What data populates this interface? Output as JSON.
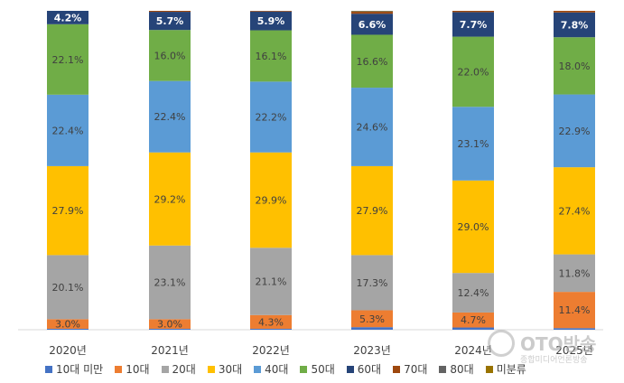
{
  "chart_data": {
    "type": "bar",
    "stacked": true,
    "categories": [
      "2020년",
      "2021년",
      "2022년",
      "2023년",
      "2024년",
      "2025년"
    ],
    "series": [
      {
        "name": "10대 미만",
        "color": "#4472c4",
        "values": [
          0.3,
          0.3,
          0.3,
          0.8,
          0.7,
          0.5
        ]
      },
      {
        "name": "10대",
        "color": "#ed7d31",
        "values": [
          3.0,
          3.0,
          4.3,
          5.3,
          4.7,
          11.4
        ]
      },
      {
        "name": "20대",
        "color": "#a5a5a5",
        "values": [
          20.1,
          23.1,
          21.1,
          17.3,
          12.4,
          11.8
        ]
      },
      {
        "name": "30대",
        "color": "#ffc000",
        "values": [
          27.9,
          29.2,
          29.9,
          27.9,
          29.0,
          27.4
        ]
      },
      {
        "name": "40대",
        "color": "#5b9bd5",
        "values": [
          22.4,
          22.4,
          22.2,
          24.6,
          23.1,
          22.9
        ]
      },
      {
        "name": "50대",
        "color": "#70ad47",
        "values": [
          22.1,
          16.0,
          16.1,
          16.6,
          22.0,
          18.0
        ]
      },
      {
        "name": "60대",
        "color": "#264478",
        "values": [
          4.2,
          5.7,
          5.9,
          6.6,
          7.7,
          7.8
        ]
      },
      {
        "name": "70대",
        "color": "#9e480e",
        "values": [
          0.0,
          0.3,
          0.2,
          0.6,
          0.4,
          0.5
        ]
      },
      {
        "name": "80대",
        "color": "#636363",
        "values": [
          0.0,
          0.0,
          0.0,
          0.2,
          0.0,
          0.0
        ]
      },
      {
        "name": "미분류",
        "color": "#997300",
        "values": [
          0.0,
          0.0,
          0.0,
          0.1,
          0.0,
          0.0
        ]
      }
    ],
    "data_labels": [
      [
        "",
        "3.0%",
        "20.1%",
        "27.9%",
        "22.4%",
        "22.1%",
        "4.2%",
        "",
        "",
        ""
      ],
      [
        "",
        "3.0%",
        "23.1%",
        "29.2%",
        "22.4%",
        "16.0%",
        "5.7%",
        "",
        "",
        ""
      ],
      [
        "",
        "4.3%",
        "21.1%",
        "29.9%",
        "22.2%",
        "16.1%",
        "5.9%",
        "",
        "",
        ""
      ],
      [
        "",
        "5.3%",
        "17.3%",
        "27.9%",
        "24.6%",
        "16.6%",
        "6.6%",
        "",
        "",
        ""
      ],
      [
        "",
        "4.7%",
        "12.4%",
        "29.0%",
        "23.1%",
        "22.0%",
        "7.7%",
        "",
        "",
        ""
      ],
      [
        "",
        "11.4%",
        "11.8%",
        "27.4%",
        "22.9%",
        "18.0%",
        "7.8%",
        "",
        "",
        ""
      ]
    ],
    "ylim": [
      0,
      100
    ],
    "grid": false,
    "legend_position": "bottom",
    "xlabel": "",
    "ylabel": "",
    "title": ""
  },
  "legend": [
    {
      "name": "10대 미만",
      "color": "#4472c4"
    },
    {
      "name": "10대",
      "color": "#ed7d31"
    },
    {
      "name": "20대",
      "color": "#a5a5a5"
    },
    {
      "name": "30대",
      "color": "#ffc000"
    },
    {
      "name": "40대",
      "color": "#5b9bd5"
    },
    {
      "name": "50대",
      "color": "#70ad47"
    },
    {
      "name": "60대",
      "color": "#264478"
    },
    {
      "name": "70대",
      "color": "#9e480e"
    },
    {
      "name": "80대",
      "color": "#636363"
    },
    {
      "name": "미분류",
      "color": "#997300"
    }
  ],
  "watermark": {
    "logo_text": "OTO방송",
    "sub_text": "종합미디어언론방송"
  }
}
